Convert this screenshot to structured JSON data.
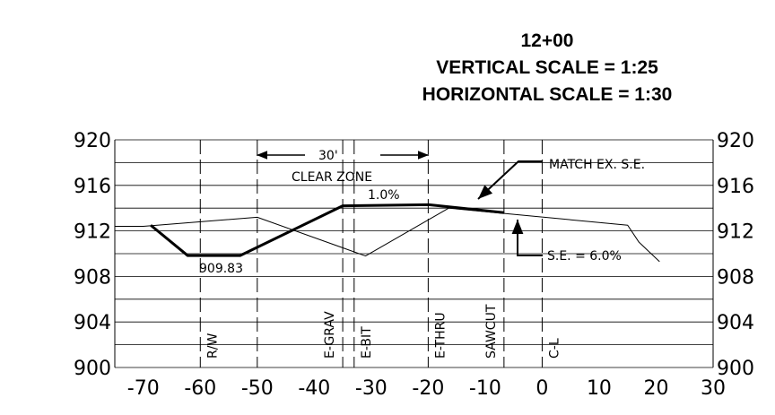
{
  "chart_data": {
    "type": "line",
    "title": [
      "12+00",
      "VERTICAL SCALE = 1:25",
      "HORIZONTAL SCALE = 1:30"
    ],
    "xlim": [
      -75,
      30
    ],
    "xticks": [
      -70,
      -60,
      -50,
      -40,
      -30,
      -20,
      -10,
      0,
      10,
      20,
      30
    ],
    "ylim": [
      900,
      920
    ],
    "yticks": [
      900,
      904,
      908,
      912,
      916,
      920
    ],
    "minor_grid": [
      902,
      906,
      910,
      914,
      918
    ],
    "series": [
      {
        "color": "#000000",
        "x": [
          -75,
          -70,
          -50,
          -31,
          -16.4,
          15,
          17,
          20.6
        ],
        "values": [
          912.4,
          912.4,
          913.2,
          909.8,
          914.0,
          912.5,
          911.0,
          909.3
        ]
      },
      {
        "color": "#000000",
        "x": [
          -68.7,
          -62.2,
          -53,
          -35,
          -19.9,
          -6.7
        ],
        "values": [
          912.5,
          909.83,
          909.83,
          914.2,
          914.3,
          913.6
        ]
      }
    ],
    "markers": [
      {
        "x": -60,
        "label": "R/W"
      },
      {
        "x": -50,
        "label": null
      },
      {
        "x": -35,
        "label": "E-GRAV"
      },
      {
        "x": -33,
        "label": "E-BIT"
      },
      {
        "x": -20,
        "label": "E-THRU"
      },
      {
        "x": -6.7,
        "label": "SAWCUT"
      },
      {
        "x": 0,
        "label": "C-L"
      }
    ],
    "annotations": {
      "low_point": "909.83",
      "slope": "1.0%",
      "clear_zone_width": "30'",
      "clear_zone": "CLEAR ZONE",
      "match": "MATCH EX. S.E.",
      "superelevation": "S.E.  = 6.0%"
    }
  }
}
